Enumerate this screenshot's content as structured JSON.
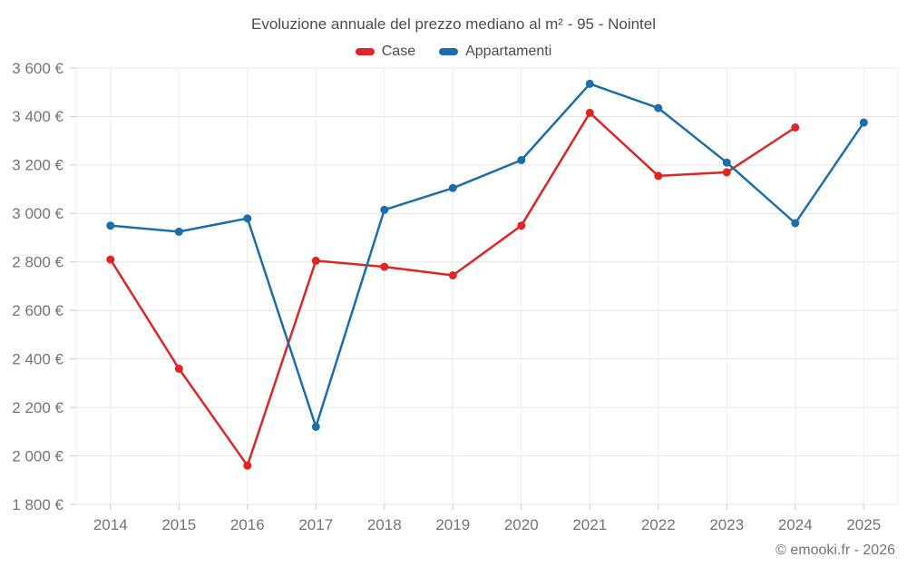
{
  "header": {
    "title": "Evoluzione annuale del prezzo mediano al m² - 95 - Nointel"
  },
  "footer": {
    "watermark": "© emooki.fr - 2026"
  },
  "chart_data": {
    "type": "line",
    "title": "Evoluzione annuale del prezzo mediano al m² - 95 - Nointel",
    "categories": [
      "2014",
      "2015",
      "2016",
      "2017",
      "2018",
      "2019",
      "2020",
      "2021",
      "2022",
      "2023",
      "2024",
      "2025"
    ],
    "series": [
      {
        "name": "Case",
        "color": "#e02525",
        "values": [
          2810,
          2360,
          1960,
          2805,
          2780,
          2745,
          2950,
          3415,
          3155,
          3170,
          3355,
          null
        ]
      },
      {
        "name": "Appartamenti",
        "color": "#1b6ea9",
        "values": [
          2950,
          2925,
          2980,
          2120,
          3015,
          3105,
          3220,
          3535,
          3435,
          3210,
          2960,
          3375
        ]
      }
    ],
    "xlabel": "",
    "ylabel": "",
    "ylim": [
      1800,
      3600
    ],
    "ytick_step": 200,
    "ytick_labels": [
      "1 800 €",
      "2 000 €",
      "2 200 €",
      "2 400 €",
      "2 600 €",
      "2 800 €",
      "3 000 €",
      "3 200 €",
      "3 400 €",
      "3 600 €"
    ],
    "grid": true,
    "legend_position": "top",
    "marker": "circle",
    "colors": {
      "h_gridline": "#e6e6e6",
      "v_gridline": "#ececec",
      "tick": "#c9c9c9",
      "axis_text": "#757575"
    }
  }
}
